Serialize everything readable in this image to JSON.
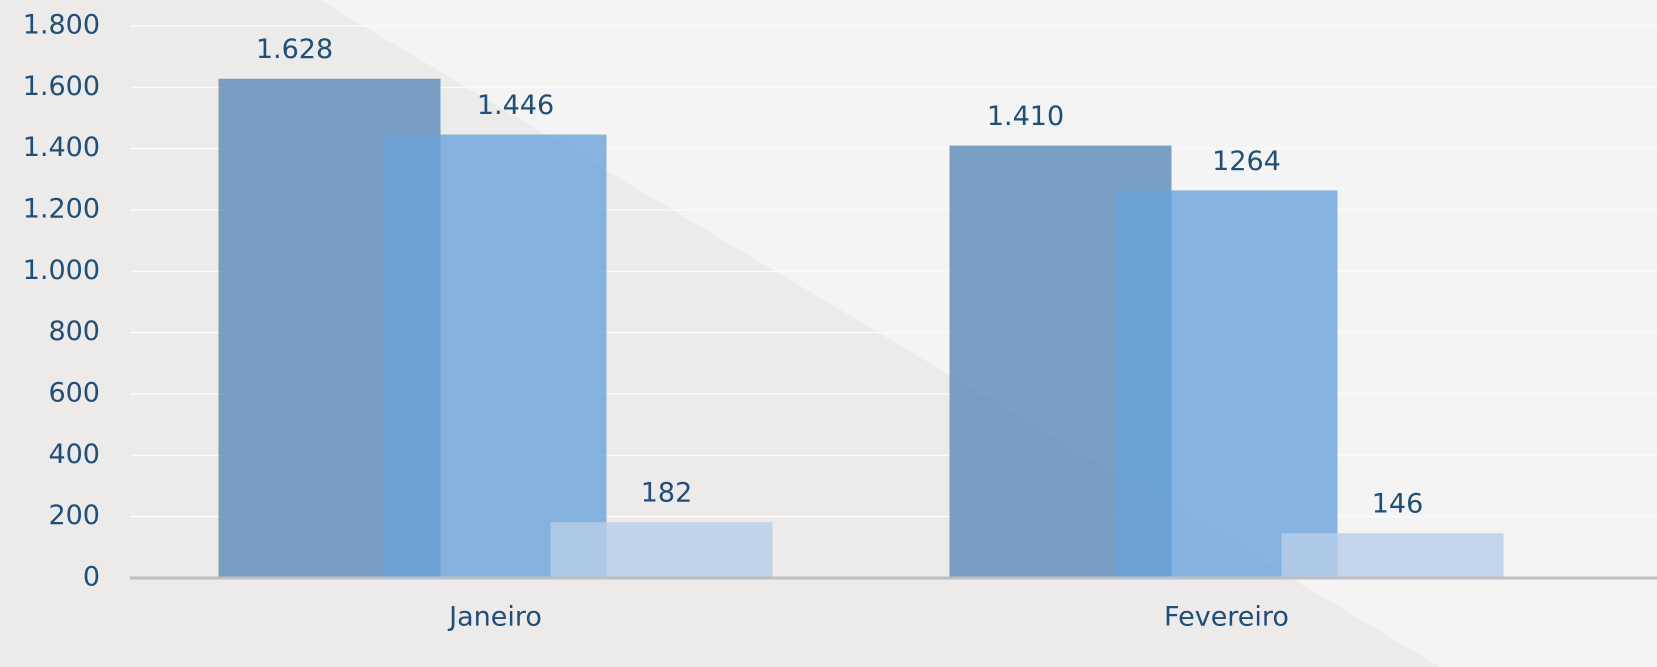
{
  "chart_data": {
    "type": "bar",
    "categories": [
      "Janeiro",
      "Fevereiro"
    ],
    "series": [
      {
        "color": "#5b8ab8",
        "values": [
          1628,
          1410
        ],
        "value_labels": [
          "1.628",
          "1.410"
        ]
      },
      {
        "color": "#6aa3d9",
        "values": [
          1446,
          1264
        ],
        "value_labels": [
          "1.446",
          "1264"
        ]
      },
      {
        "color": "#b8cde8",
        "values": [
          182,
          146
        ]
      }
    ],
    "ylim": [
      0,
      1800
    ],
    "yticks": [
      {
        "value": 0,
        "label": "0"
      },
      {
        "value": 200,
        "label": "200"
      },
      {
        "value": 400,
        "label": "400"
      },
      {
        "value": 600,
        "label": "600"
      },
      {
        "value": 800,
        "label": "800"
      },
      {
        "value": 1000,
        "label": "1.000"
      },
      {
        "value": 1200,
        "label": "1.200"
      },
      {
        "value": 1400,
        "label": "1.400"
      },
      {
        "value": 1600,
        "label": "1.600"
      },
      {
        "value": 1800,
        "label": "1.800"
      }
    ],
    "grid": true
  }
}
